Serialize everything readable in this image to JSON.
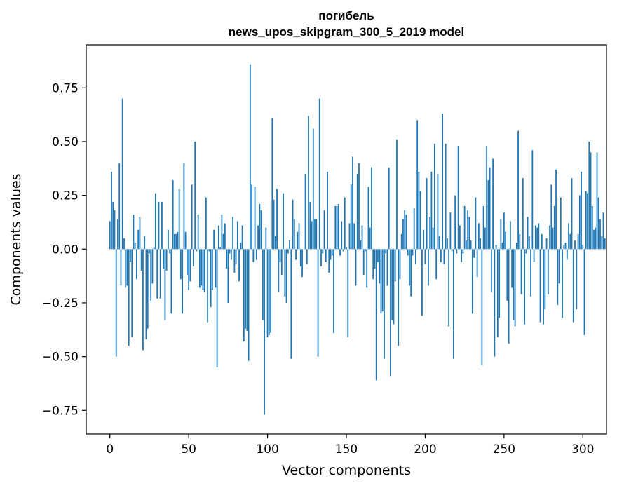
{
  "chart_data": {
    "type": "bar",
    "title": "погибель",
    "subtitle": "news_upos_skipgram_300_5_2019 model",
    "xlabel": "Vector components",
    "ylabel": "Components values",
    "xlim": [
      -15,
      315
    ],
    "ylim": [
      -0.86,
      0.95
    ],
    "xticks": [
      0,
      50,
      100,
      150,
      200,
      250,
      300
    ],
    "yticks": [
      -0.75,
      -0.5,
      -0.25,
      0.0,
      0.25,
      0.5,
      0.75
    ],
    "ytick_labels": [
      "−0.75",
      "−0.50",
      "−0.25",
      "0.00",
      "0.25",
      "0.50",
      "0.75"
    ],
    "grid": false,
    "bar_color": "#1f77b4",
    "values": [
      0.13,
      0.36,
      0.22,
      0.18,
      -0.5,
      0.14,
      0.4,
      -0.17,
      0.7,
      0.05,
      -0.18,
      -0.17,
      -0.45,
      -0.06,
      -0.41,
      0.16,
      0.03,
      -0.14,
      0.09,
      0.15,
      -0.1,
      -0.47,
      0.06,
      -0.42,
      -0.37,
      -0.02,
      -0.24,
      -0.16,
      0.01,
      0.26,
      -0.23,
      0.22,
      -0.23,
      0.22,
      -0.09,
      -0.33,
      -0.1,
      0.09,
      -0.02,
      -0.3,
      0.32,
      0.07,
      0.07,
      0.08,
      0.28,
      -0.14,
      -0.3,
      0.4,
      0.08,
      -0.12,
      -0.19,
      -0.15,
      0.3,
      -0.08,
      0.5,
      -0.01,
      0.16,
      -0.18,
      -0.17,
      -0.19,
      -0.2,
      0.24,
      -0.34,
      -0.01,
      -0.27,
      -0.19,
      0.09,
      -0.18,
      -0.55,
      0.11,
      0.01,
      0.16,
      0.07,
      0.12,
      -0.09,
      -0.25,
      -0.02,
      -0.05,
      0.15,
      -0.11,
      -0.07,
      0.13,
      -0.15,
      0.03,
      0.11,
      -0.43,
      -0.37,
      -0.38,
      -0.52,
      0.86,
      0.3,
      -0.06,
      0.29,
      -0.05,
      0.11,
      0.21,
      0.18,
      -0.33,
      -0.77,
      0.1,
      -0.41,
      -0.4,
      -0.39,
      0.61,
      0.23,
      0.06,
      0.28,
      -0.2,
      -0.06,
      -0.12,
      0.26,
      -0.22,
      -0.25,
      -0.02,
      0.04,
      -0.51,
      0.23,
      0.14,
      -0.05,
      0.08,
      0.12,
      -0.08,
      -0.13,
      0.0,
      0.35,
      -0.07,
      0.62,
      0.22,
      0.13,
      0.56,
      0.14,
      0.14,
      -0.5,
      0.7,
      -0.08,
      -0.02,
      0.18,
      -0.06,
      0.36,
      -0.11,
      -0.05,
      -0.03,
      -0.39,
      0.2,
      0.2,
      0.21,
      -0.03,
      0.13,
      -0.01,
      0.24,
      0.01,
      -0.41,
      0.12,
      0.3,
      0.43,
      0.12,
      -0.17,
      0.35,
      0.4,
      0.04,
      0.11,
      -0.12,
      -0.01,
      -0.18,
      0.29,
      0.1,
      0.38,
      -0.14,
      -0.09,
      -0.61,
      -0.06,
      -0.16,
      -0.3,
      -0.29,
      -0.51,
      -0.02,
      -0.17,
      0.38,
      -0.59,
      -0.33,
      -0.35,
      -0.15,
      0.51,
      -0.45,
      -0.14,
      0.07,
      0.14,
      0.18,
      0.16,
      -0.03,
      -0.17,
      -0.22,
      -0.03,
      0.19,
      -0.07,
      0.6,
      0.36,
      0.27,
      -0.31,
      0.09,
      -0.07,
      0.33,
      -0.17,
      0.15,
      0.36,
      0.1,
      0.49,
      -0.14,
      0.35,
      0.06,
      -0.06,
      0.63,
      -0.07,
      0.49,
      0.05,
      -0.36,
      0.17,
      -0.01,
      -0.51,
      0.25,
      -0.02,
      0.48,
      0.11,
      -0.06,
      -0.02,
      0.2,
      0.04,
      0.18,
      0.15,
      0.04,
      -0.3,
      -0.04,
      0.24,
      -0.13,
      0.12,
      0.05,
      -0.54,
      0.2,
      0.1,
      0.48,
      0.32,
      0.38,
      -0.2,
      0.42,
      -0.5,
      0.02,
      -0.41,
      -0.32,
      0.14,
      0.03,
      0.17,
      0.08,
      -0.24,
      -0.44,
      0.13,
      -0.18,
      -0.33,
      -0.36,
      0.03,
      0.55,
      0.07,
      -0.21,
      0.33,
      -0.35,
      -0.02,
      0.15,
      0.06,
      -0.22,
      0.46,
      -0.06,
      0.11,
      0.1,
      0.12,
      -0.34,
      0.07,
      -0.35,
      -0.28,
      0.05,
      -0.21,
      0.11,
      0.3,
      0.1,
      0.2,
      0.37,
      -0.26,
      -0.16,
      0.24,
      -0.32,
      0.02,
      0.03,
      -0.05,
      0.12,
      0.07,
      0.33,
      -0.34,
      0.04,
      -0.28,
      0.07,
      0.25,
      0.36,
      0.02,
      -0.4,
      0.27,
      0.26,
      0.5,
      0.45,
      0.2,
      0.09,
      0.1,
      0.45,
      0.24,
      0.14,
      0.06,
      0.17,
      0.05
    ]
  }
}
